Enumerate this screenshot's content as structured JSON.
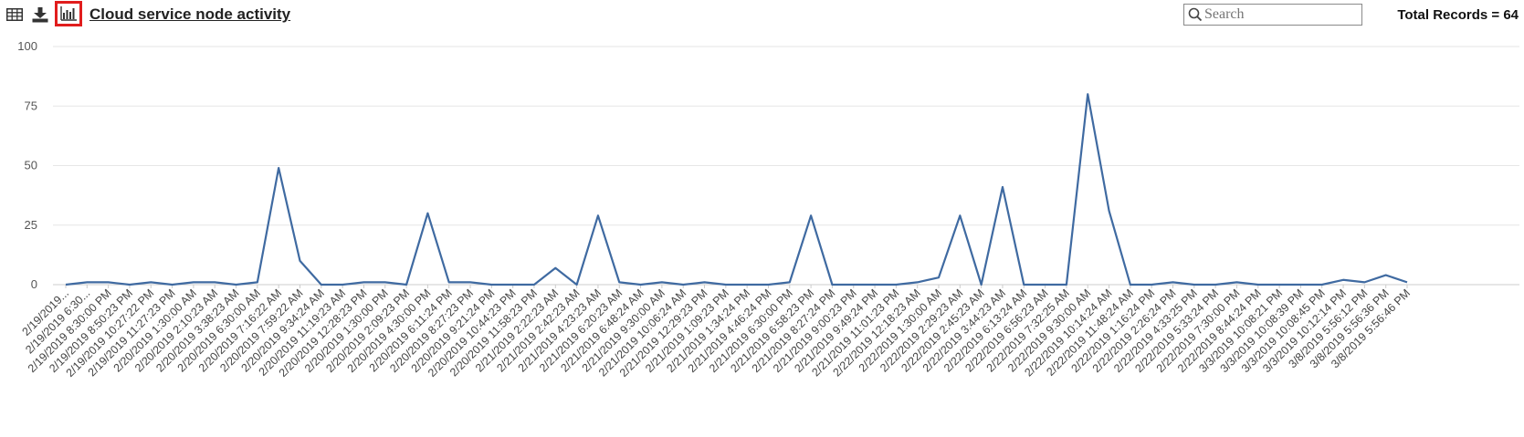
{
  "toolbar": {
    "title": "Cloud service node activity",
    "search_placeholder": "Search",
    "total_records": "Total Records = 64",
    "icons": [
      "table-view-icon",
      "download-icon",
      "chart-view-icon"
    ]
  },
  "colors": {
    "line": "#3f6aa1",
    "highlight": "#e11d1d",
    "grid": "#e6e6e6"
  },
  "chart_data": {
    "type": "line",
    "title": "",
    "xlabel": "",
    "ylabel": "",
    "ylim": [
      0,
      100
    ],
    "yticks": [
      0,
      25,
      50,
      75,
      100
    ],
    "grid": true,
    "categories": [
      "2/19/2019...",
      "2/19/2019 6:30...",
      "2/19/2019 8:30:00 PM",
      "2/19/2019 8:50:23 PM",
      "2/19/2019 10:27:22 PM",
      "2/19/2019 11:27:23 PM",
      "2/20/2019 1:30:00 AM",
      "2/20/2019 2:10:23 AM",
      "2/20/2019 3:38:23 AM",
      "2/20/2019 6:30:00 AM",
      "2/20/2019 7:16:22 AM",
      "2/20/2019 7:59:22 AM",
      "2/20/2019 9:34:24 AM",
      "2/20/2019 11:19:23 AM",
      "2/20/2019 12:28:23 PM",
      "2/20/2019 1:30:00 PM",
      "2/20/2019 2:09:23 PM",
      "2/20/2019 4:30:00 PM",
      "2/20/2019 6:11:24 PM",
      "2/20/2019 8:27:23 PM",
      "2/20/2019 9:21:24 PM",
      "2/20/2019 10:44:23 PM",
      "2/20/2019 11:58:23 PM",
      "2/21/2019 2:22:23 AM",
      "2/21/2019 2:42:23 AM",
      "2/21/2019 4:23:23 AM",
      "2/21/2019 6:20:23 AM",
      "2/21/2019 6:48:24 AM",
      "2/21/2019 9:30:00 AM",
      "2/21/2019 10:06:24 AM",
      "2/21/2019 12:29:23 PM",
      "2/21/2019 1:09:23 PM",
      "2/21/2019 1:34:24 PM",
      "2/21/2019 4:46:24 PM",
      "2/21/2019 6:30:00 PM",
      "2/21/2019 6:58:23 PM",
      "2/21/2019 8:27:24 PM",
      "2/21/2019 9:00:23 PM",
      "2/21/2019 9:49:24 PM",
      "2/21/2019 11:01:23 PM",
      "2/22/2019 12:18:23 AM",
      "2/22/2019 1:30:00 AM",
      "2/22/2019 2:29:23 AM",
      "2/22/2019 2:45:23 AM",
      "2/22/2019 3:44:23 AM",
      "2/22/2019 6:13:24 AM",
      "2/22/2019 6:56:23 AM",
      "2/22/2019 7:32:25 AM",
      "2/22/2019 9:30:00 AM",
      "2/22/2019 10:14:24 AM",
      "2/22/2019 11:48:24 AM",
      "2/22/2019 1:16:24 PM",
      "2/22/2019 2:26:24 PM",
      "2/22/2019 4:33:25 PM",
      "2/22/2019 5:33:24 PM",
      "2/22/2019 7:30:00 PM",
      "2/22/2019 8:44:24 PM",
      "3/3/2019 10:08:21 PM",
      "3/3/2019 10:08:39 PM",
      "3/3/2019 10:08:45 PM",
      "3/3/2019 10:12:14 PM",
      "3/8/2019 5:56:12 PM",
      "3/8/2019 5:56:36 PM",
      "3/8/2019 5:56:46 PM"
    ],
    "series": [
      {
        "values": [
          0,
          1,
          1,
          0,
          1,
          0,
          1,
          1,
          0,
          1,
          49,
          10,
          0,
          0,
          1,
          1,
          0,
          30,
          1,
          1,
          0,
          0,
          0,
          7,
          0,
          29,
          1,
          0,
          1,
          0,
          1,
          0,
          0,
          0,
          1,
          29,
          0,
          0,
          0,
          0,
          1,
          3,
          29,
          0,
          41,
          0,
          0,
          0,
          80,
          31,
          0,
          0,
          1,
          0,
          0,
          1,
          0,
          0,
          0,
          0,
          2,
          1,
          4,
          1
        ]
      }
    ]
  }
}
